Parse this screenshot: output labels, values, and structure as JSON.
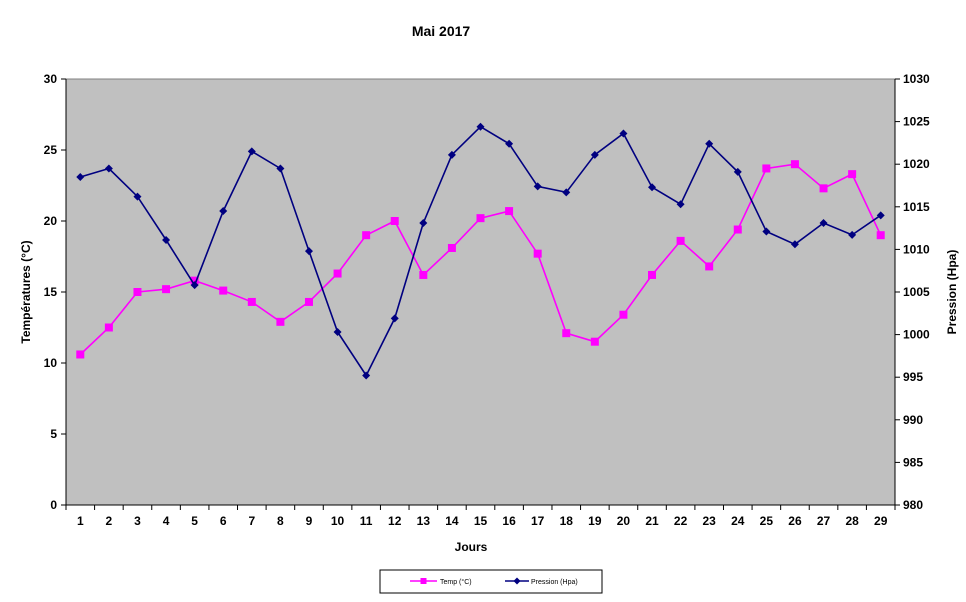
{
  "chart_data": {
    "type": "line",
    "title": "Mai 2017",
    "xlabel": "Jours",
    "ylabel_left": "Températures (°C)",
    "ylabel_right": "Pression (Hpa)",
    "ylim_left": [
      0,
      30
    ],
    "ylim_right": [
      980,
      1030
    ],
    "yticks_left": [
      0,
      5,
      10,
      15,
      20,
      25,
      30
    ],
    "yticks_right": [
      980,
      985,
      990,
      995,
      1000,
      1005,
      1010,
      1015,
      1020,
      1025,
      1030
    ],
    "x": [
      1,
      2,
      3,
      4,
      5,
      6,
      7,
      8,
      9,
      10,
      11,
      12,
      13,
      14,
      15,
      16,
      17,
      18,
      19,
      20,
      21,
      22,
      23,
      24,
      25,
      26,
      27,
      28,
      29
    ],
    "legend_position": "bottom",
    "plot_background": "#c0c0c0",
    "series": [
      {
        "name": "Temp (°C)",
        "axis": "left",
        "color": "#ff00ff",
        "marker": "square",
        "values": [
          10.6,
          12.5,
          15.0,
          15.2,
          15.8,
          15.1,
          14.3,
          12.9,
          14.3,
          16.3,
          19.0,
          20.0,
          16.2,
          18.1,
          20.2,
          20.7,
          17.7,
          12.1,
          11.5,
          13.4,
          16.2,
          18.6,
          16.8,
          19.4,
          23.7,
          24.0,
          22.3,
          23.3,
          19.0
        ]
      },
      {
        "name": "Pression (Hpa)",
        "axis": "right",
        "color": "#000080",
        "marker": "diamond",
        "values": [
          1018.5,
          1019.5,
          1016.2,
          1011.1,
          1005.8,
          1014.5,
          1021.5,
          1019.5,
          1009.8,
          1000.3,
          995.2,
          1001.9,
          1013.1,
          1021.1,
          1024.4,
          1022.4,
          1017.4,
          1016.7,
          1021.1,
          1023.6,
          1017.3,
          1015.3,
          1022.4,
          1019.1,
          1012.1,
          1010.6,
          1013.1,
          1011.7,
          1014.0
        ]
      }
    ]
  }
}
